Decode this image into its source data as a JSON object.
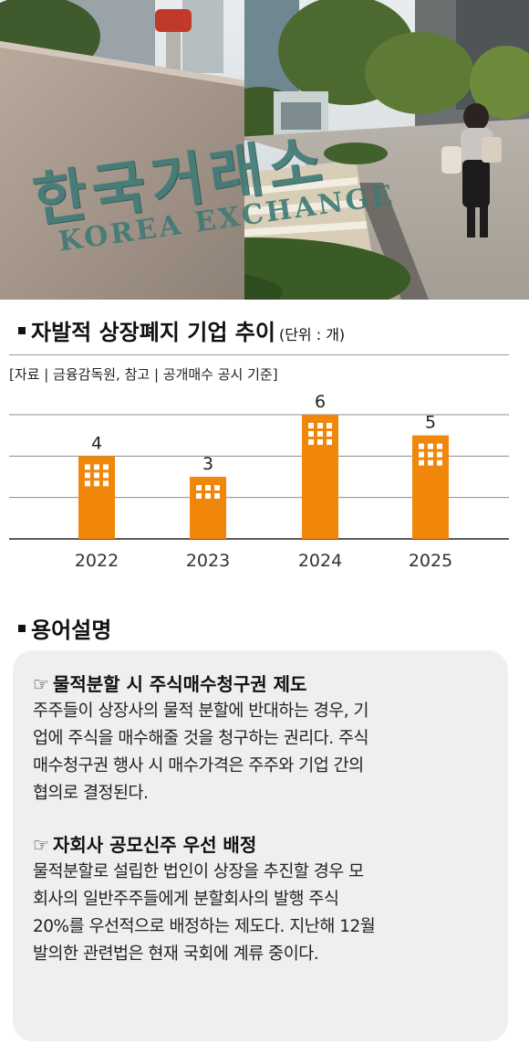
{
  "photo": {
    "engraving_main": "한국거래소",
    "engraving_sub": "KOREA EXCHANGE"
  },
  "chart_header": {
    "title": "자발적 상장폐지 기업 추이",
    "unit": "(단위 : 개)",
    "source": "[자료 | 금융감독원, 참고 | 공개매수 공시 기준]"
  },
  "chart_data": {
    "type": "bar",
    "title": "자발적 상장폐지 기업 추이",
    "unit": "개",
    "categories": [
      "2022",
      "2023",
      "2024",
      "2025"
    ],
    "values": [
      4,
      3,
      6,
      5
    ],
    "ylim": [
      0,
      6
    ],
    "gridlines": [
      2,
      4,
      6
    ],
    "grid": true,
    "bar_color": "#f0860a",
    "window_color": "#ffffff"
  },
  "glossary": {
    "title": "용어설명",
    "terms": [
      {
        "icon": "pointing-hand-icon",
        "symbol": "☞",
        "heading": "물적분할 시 주식매수청구권 제도",
        "lines": [
          "주주들이 상장사의 물적 분할에 반대하는 경우, 기",
          "업에 주식을 매수해줄 것을 청구하는 권리다. 주식",
          "매수청구권 행사 시 매수가격은 주주와 기업 간의",
          "협의로 결정된다."
        ]
      },
      {
        "icon": "pointing-hand-icon",
        "symbol": "☞",
        "heading": "자회사 공모신주 우선 배정",
        "lines": [
          "물적분할로 설립한 법인이 상장을 추진할 경우 모",
          "회사의 일반주주들에게 분할회사의 발행 주식",
          "20%를 우선적으로 배정하는 제도다. 지난해 12월",
          "발의한 관련법은 현재 국회에 계류 중이다."
        ]
      }
    ]
  }
}
